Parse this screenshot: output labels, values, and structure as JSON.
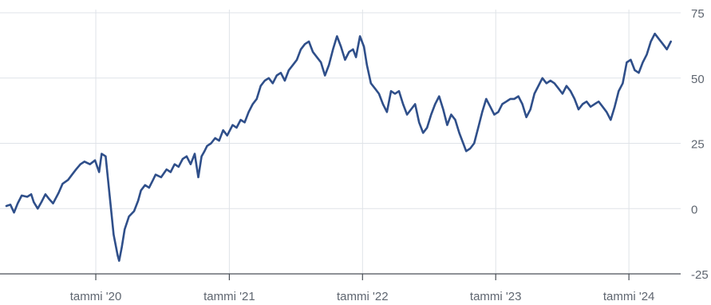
{
  "chart_data": {
    "type": "line",
    "ylim": [
      -25,
      75
    ],
    "y_ticks": [
      75,
      50,
      25,
      0,
      -25
    ],
    "y_tick_labels": [
      "75",
      "50",
      "25",
      "0",
      "-25"
    ],
    "y_axis_side": "right",
    "x_start": "2019-05-01",
    "x_end": "2024-04-30",
    "x_ticks": [
      {
        "date": "2020-01-01",
        "label": "tammi '20"
      },
      {
        "date": "2021-01-01",
        "label": "tammi '21"
      },
      {
        "date": "2022-01-01",
        "label": "tammi '22"
      },
      {
        "date": "2023-01-01",
        "label": "tammi '23"
      },
      {
        "date": "2024-01-01",
        "label": "tammi '24"
      }
    ],
    "grid": true,
    "colors": {
      "series": "#2f4f8a",
      "grid": "#dfe3e8",
      "axis": "#4a4f57",
      "text": "#5f6670"
    },
    "series": [
      {
        "x": [
          "2019-05-01",
          "2019-05-12",
          "2019-05-22",
          "2019-06-01",
          "2019-06-12",
          "2019-06-27",
          "2019-07-08",
          "2019-07-15",
          "2019-07-26",
          "2019-08-05",
          "2019-08-16",
          "2019-08-27",
          "2019-09-06",
          "2019-09-21",
          "2019-10-02",
          "2019-10-17",
          "2019-10-28",
          "2019-11-08",
          "2019-11-20",
          "2019-12-01",
          "2019-12-16",
          "2019-12-30",
          "2020-01-10",
          "2020-01-17",
          "2020-01-28",
          "2020-02-08",
          "2020-02-19",
          "2020-03-01",
          "2020-03-05",
          "2020-03-12",
          "2020-03-20",
          "2020-04-01",
          "2020-04-15",
          "2020-04-26",
          "2020-05-04",
          "2020-05-15",
          "2020-05-26",
          "2020-06-06",
          "2020-06-13",
          "2020-06-28",
          "2020-07-13",
          "2020-07-24",
          "2020-08-04",
          "2020-08-15",
          "2020-08-26",
          "2020-09-06",
          "2020-09-17",
          "2020-09-28",
          "2020-10-08",
          "2020-10-17",
          "2020-10-25",
          "2020-11-01",
          "2020-11-12",
          "2020-11-23",
          "2020-12-04",
          "2020-12-15",
          "2020-12-26",
          "2021-01-10",
          "2021-01-21",
          "2021-02-01",
          "2021-02-12",
          "2021-02-23",
          "2021-03-06",
          "2021-03-17",
          "2021-03-28",
          "2021-04-08",
          "2021-04-19",
          "2021-04-30",
          "2021-05-11",
          "2021-05-22",
          "2021-06-02",
          "2021-06-13",
          "2021-06-24",
          "2021-07-05",
          "2021-07-16",
          "2021-07-27",
          "2021-08-07",
          "2021-08-18",
          "2021-08-29",
          "2021-09-09",
          "2021-09-20",
          "2021-10-01",
          "2021-10-12",
          "2021-10-23",
          "2021-11-03",
          "2021-11-14",
          "2021-11-25",
          "2021-12-06",
          "2021-12-14",
          "2021-12-25",
          "2022-01-05",
          "2022-01-13",
          "2022-01-24",
          "2022-02-04",
          "2022-02-15",
          "2022-02-26",
          "2022-03-09",
          "2022-03-20",
          "2022-03-31",
          "2022-04-11",
          "2022-04-22",
          "2022-05-03",
          "2022-05-14",
          "2022-05-25",
          "2022-06-05",
          "2022-06-16",
          "2022-06-27",
          "2022-07-08",
          "2022-07-19",
          "2022-07-30",
          "2022-08-10",
          "2022-08-21",
          "2022-09-01",
          "2022-09-12",
          "2022-09-23",
          "2022-10-04",
          "2022-10-12",
          "2022-10-23",
          "2022-11-03",
          "2022-11-14",
          "2022-11-25",
          "2022-12-06",
          "2022-12-17",
          "2022-12-28",
          "2023-01-08",
          "2023-01-19",
          "2023-01-30",
          "2023-02-10",
          "2023-02-21",
          "2023-03-04",
          "2023-03-15",
          "2023-03-26",
          "2023-04-06",
          "2023-04-17",
          "2023-04-28",
          "2023-05-09",
          "2023-05-20",
          "2023-05-31",
          "2023-06-11",
          "2023-06-22",
          "2023-07-03",
          "2023-07-14",
          "2023-07-25",
          "2023-08-05",
          "2023-08-16",
          "2023-08-27",
          "2023-09-07",
          "2023-09-18",
          "2023-09-29",
          "2023-10-10",
          "2023-10-21",
          "2023-11-01",
          "2023-11-12",
          "2023-11-23",
          "2023-12-04",
          "2023-12-15",
          "2023-12-26",
          "2024-01-06",
          "2024-01-17",
          "2024-01-28",
          "2024-02-08",
          "2024-02-19",
          "2024-03-01",
          "2024-03-12",
          "2024-03-23",
          "2024-04-03",
          "2024-04-14",
          "2024-04-25"
        ],
        "y": [
          1,
          1.5,
          -1.5,
          2,
          5,
          4.5,
          5.5,
          2.5,
          0,
          2.5,
          5.5,
          3.5,
          2,
          6,
          9.5,
          11,
          13,
          15,
          17,
          18,
          17,
          18.5,
          14,
          21,
          20,
          5,
          -10,
          -18,
          -20,
          -15,
          -8,
          -3,
          -1,
          3,
          7,
          9,
          8,
          11,
          13,
          12,
          15,
          14,
          17,
          16,
          19,
          20,
          17,
          21,
          12,
          20,
          22,
          24,
          25,
          27,
          26,
          30,
          28,
          32,
          31,
          34,
          33,
          37,
          40,
          42,
          47,
          49,
          50,
          48,
          51,
          52,
          49,
          53,
          55,
          57,
          61,
          63,
          64,
          60,
          58,
          56,
          51,
          55,
          61,
          66,
          62,
          57,
          60,
          61,
          58,
          66,
          62,
          55,
          48,
          46,
          44,
          40,
          37,
          45,
          44,
          45,
          40,
          36,
          38,
          40,
          33,
          29,
          31,
          36,
          40,
          43,
          38,
          32,
          36,
          34,
          29,
          25,
          22,
          23,
          25,
          31,
          37,
          42,
          39,
          36,
          37,
          40,
          41,
          42,
          42,
          43,
          40,
          35,
          38,
          44,
          47,
          50,
          48,
          49,
          48,
          46,
          44,
          47,
          45,
          42,
          38,
          40,
          41,
          39,
          40,
          41,
          39,
          37,
          34,
          39,
          45,
          48,
          56,
          57,
          53,
          52,
          56,
          59,
          64,
          67,
          65,
          63,
          61,
          64
        ]
      }
    ]
  }
}
